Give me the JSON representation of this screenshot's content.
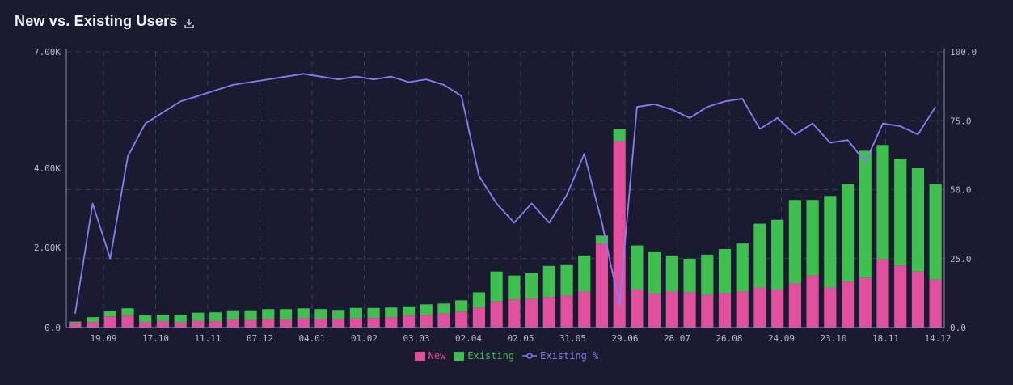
{
  "title": "New vs. Existing Users",
  "icons": {
    "download": "download-icon"
  },
  "colors": {
    "new": "#e0509e",
    "existing": "#3fbf4f",
    "existing_pct": "#8a7cf2",
    "background": "#1a1b30",
    "grid": "#3a3c58"
  },
  "chart_data": {
    "type": "bar",
    "stacked": true,
    "title": "New vs. Existing Users",
    "x_tick_labels": [
      "19.09",
      "17.10",
      "11.11",
      "07.12",
      "04.01",
      "01.02",
      "03.03",
      "02.04",
      "02.05",
      "31.05",
      "29.06",
      "28.07",
      "26.08",
      "24.09",
      "23.10",
      "18.11",
      "14.12"
    ],
    "y_left": {
      "ticks": [
        0,
        2000,
        4000,
        7000
      ],
      "tick_labels": [
        "0.0",
        "2.00K",
        "4.00K",
        "7.00K"
      ],
      "range": [
        0,
        7000
      ]
    },
    "y_right": {
      "ticks": [
        0,
        25,
        50,
        75,
        100
      ],
      "tick_labels": [
        "0.0",
        "25.0",
        "50.0",
        "75.0",
        "100.0"
      ],
      "range": [
        0,
        100
      ]
    },
    "legend": {
      "position": "bottom",
      "items": [
        "New",
        "Existing",
        "Existing %"
      ]
    },
    "series": [
      {
        "name": "New",
        "axis": "left",
        "kind": "bar",
        "values": [
          120,
          140,
          280,
          300,
          140,
          160,
          130,
          170,
          160,
          200,
          190,
          210,
          200,
          230,
          220,
          210,
          230,
          240,
          260,
          300,
          320,
          350,
          400,
          500,
          650,
          700,
          720,
          760,
          800,
          900,
          2100,
          4700,
          950,
          850,
          900,
          880,
          820,
          860,
          900,
          1000,
          950,
          1100,
          1300,
          1000,
          1150,
          1250,
          1700,
          1550,
          1400,
          1200
        ]
      },
      {
        "name": "Existing",
        "axis": "left",
        "kind": "bar",
        "values": [
          30,
          120,
          140,
          180,
          170,
          160,
          190,
          200,
          220,
          230,
          240,
          250,
          260,
          250,
          240,
          230,
          260,
          250,
          240,
          230,
          260,
          250,
          280,
          380,
          750,
          600,
          640,
          780,
          760,
          900,
          200,
          300,
          1100,
          1050,
          900,
          840,
          1000,
          1100,
          1200,
          1600,
          1750,
          2100,
          1900,
          2300,
          2450,
          3200,
          2900,
          2700,
          2600,
          2400
        ]
      },
      {
        "name": "Existing %",
        "axis": "right",
        "kind": "line",
        "values": [
          5,
          45,
          25,
          62,
          74,
          78,
          82,
          84,
          86,
          88,
          89,
          90,
          91,
          92,
          91,
          90,
          91,
          90,
          91,
          89,
          90,
          88,
          84,
          55,
          45,
          38,
          45,
          38,
          48,
          63,
          38,
          8,
          80,
          81,
          79,
          76,
          80,
          82,
          83,
          72,
          76,
          70,
          74,
          67,
          68,
          60,
          74,
          73,
          70,
          80
        ]
      }
    ]
  }
}
